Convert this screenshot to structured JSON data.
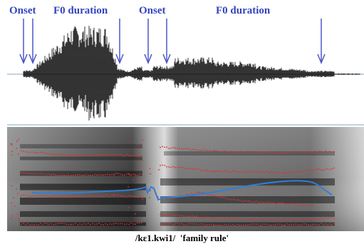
{
  "labels": {
    "onset_1": "Onset",
    "f0_duration_1": "F0 duration",
    "onset_2": "Onset",
    "f0_duration_2": "F0 duration"
  },
  "caption": {
    "transcription": "/kɛ1.kwi1/",
    "gloss": "'family rule'"
  },
  "colors": {
    "label": "#3344bb",
    "arrow": "#4a57c8",
    "waveform": "#000000",
    "axis_line": "#7fa7c7",
    "formant_track": "#e03030",
    "pitch_track": "#2f7fd6"
  },
  "icons": {
    "arrow": "down-arrow-icon"
  }
}
